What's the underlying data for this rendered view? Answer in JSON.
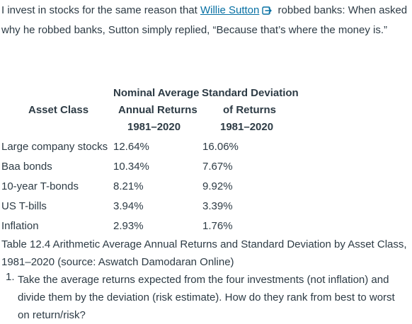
{
  "intro": {
    "before_link": "I invest in stocks for the same reason that ",
    "link_text": "Willie Sutton",
    "after_link": " robbed banks: When asked why he robbed banks, Sutton simply replied, “Because that’s where the money is.”",
    "icon": "external-link-icon",
    "link_color": "#0770a3"
  },
  "table": {
    "headers": {
      "asset_class": "Asset Class",
      "returns": [
        "Nominal Average",
        "Annual Returns",
        "1981–2020"
      ],
      "deviation": [
        "Standard Deviation",
        "of Returns",
        "1981–2020"
      ]
    },
    "rows": [
      {
        "asset": "Large company stocks",
        "return": "12.64%",
        "deviation": "16.06%"
      },
      {
        "asset": "Baa bonds",
        "return": "10.34%",
        "deviation": "7.67%"
      },
      {
        "asset": "10-year T-bonds",
        "return": "8.21%",
        "deviation": "9.92%"
      },
      {
        "asset": "US T-bills",
        "return": "3.94%",
        "deviation": "3.39%"
      },
      {
        "asset": "Inflation",
        "return": "2.93%",
        "deviation": "1.76%"
      }
    ]
  },
  "caption": "Table 12.4 Arithmetic Average Annual Returns and Standard Deviation by Asset Class, 1981–2020 (source: Aswatch Damodaran Online)",
  "questions": [
    {
      "number": "1.",
      "text": "Take the average returns expected from the four investments (not inflation) and divide them by the deviation (risk estimate). How do they rank from best to worst on return/risk?"
    }
  ],
  "colors": {
    "text": "#2d3b45",
    "link": "#0770a3",
    "background": "#ffffff"
  }
}
